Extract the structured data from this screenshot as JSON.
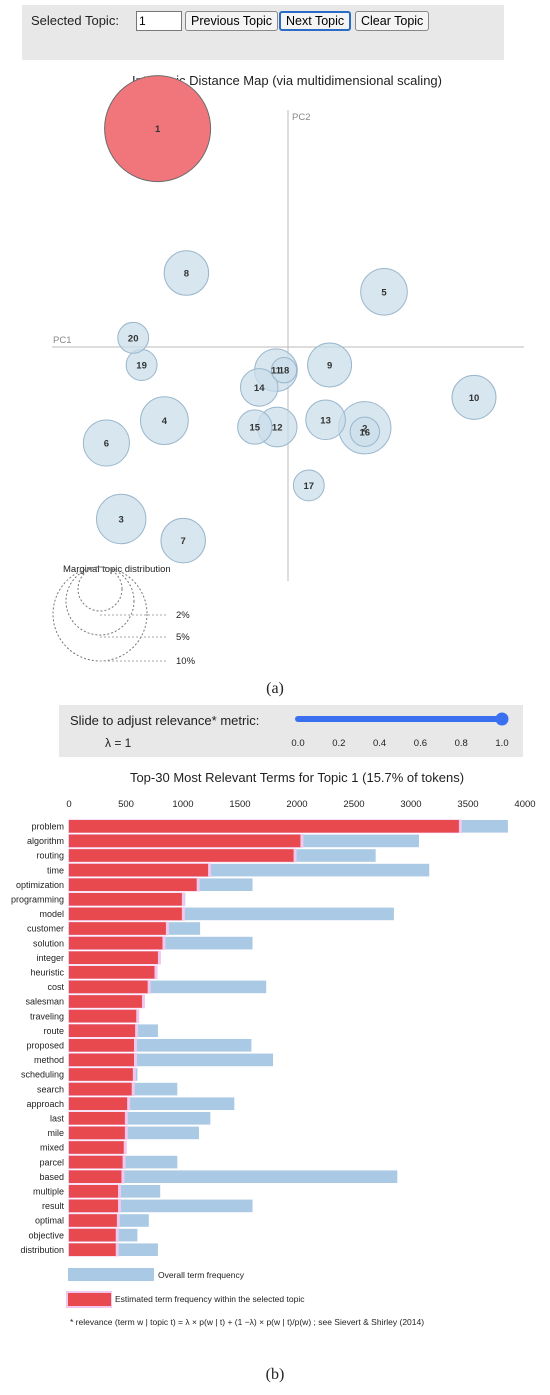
{
  "toolbar": {
    "selected_label": "Selected Topic:",
    "selected_value": "1",
    "prev_label": "Previous Topic",
    "next_label": "Next Topic",
    "clear_label": "Clear Topic"
  },
  "map": {
    "title": "Intertopic Distance Map (via multidimensional scaling)",
    "pc1_label": "PC1",
    "pc2_label": "PC2",
    "selected_color": "#f0767c",
    "topic_color": "#c9ddea",
    "topics": [
      {
        "id": "1",
        "x": -3.26,
        "y": 5.46,
        "size": 1.0
      },
      {
        "id": "2",
        "x": 1.92,
        "y": -2.02,
        "size": 0.243
      },
      {
        "id": "3",
        "x": -4.17,
        "y": -4.3,
        "size": 0.217
      },
      {
        "id": "4",
        "x": -3.09,
        "y": -1.84,
        "size": 0.203
      },
      {
        "id": "5",
        "x": 2.4,
        "y": 1.38,
        "size": 0.193
      },
      {
        "id": "6",
        "x": -4.54,
        "y": -2.4,
        "size": 0.189
      },
      {
        "id": "7",
        "x": -2.62,
        "y": -4.84,
        "size": 0.176
      },
      {
        "id": "8",
        "x": -2.54,
        "y": 1.85,
        "size": 0.176
      },
      {
        "id": "9",
        "x": 1.04,
        "y": -0.45,
        "size": 0.172
      },
      {
        "id": "10",
        "x": 4.65,
        "y": -1.26,
        "size": 0.172
      },
      {
        "id": "11",
        "x": -0.3,
        "y": -0.58,
        "size": 0.162
      },
      {
        "id": "12",
        "x": -0.27,
        "y": -2.0,
        "size": 0.14
      },
      {
        "id": "13",
        "x": 0.94,
        "y": -1.82,
        "size": 0.14
      },
      {
        "id": "14",
        "x": -0.72,
        "y": -1.01,
        "size": 0.125
      },
      {
        "id": "15",
        "x": -0.83,
        "y": -2.0,
        "size": 0.105
      },
      {
        "id": "16",
        "x": 1.92,
        "y": -2.12,
        "size": 0.077
      },
      {
        "id": "17",
        "x": 0.52,
        "y": -3.46,
        "size": 0.085
      },
      {
        "id": "18",
        "x": -0.1,
        "y": -0.58,
        "size": 0.057
      },
      {
        "id": "19",
        "x": -3.66,
        "y": -0.45,
        "size": 0.085
      },
      {
        "id": "20",
        "x": -3.87,
        "y": 0.23,
        "size": 0.085
      }
    ],
    "legend": {
      "title": "Marginal topic distribution",
      "labels": [
        "2%",
        "5%",
        "10%"
      ]
    }
  },
  "caption_a": "(a)",
  "slider": {
    "label": "Slide to adjust relevance* metric:",
    "lambda_text": "λ = 1",
    "value": 1.0,
    "ticks": [
      "0.0",
      "0.2",
      "0.4",
      "0.6",
      "0.8",
      "1.0"
    ],
    "color": "#3a6ff0"
  },
  "chart_data": {
    "type": "bar",
    "title": "Top-30 Most Relevant Terms for Topic 1 (15.7% of tokens)",
    "xlim": [
      0,
      4000
    ],
    "xticks": [
      "0",
      "500",
      "1000",
      "1500",
      "2000",
      "2500",
      "3000",
      "3500",
      "4000"
    ],
    "categories": [
      "problem",
      "algorithm",
      "routing",
      "time",
      "optimization",
      "programming",
      "model",
      "customer",
      "solution",
      "integer",
      "heuristic",
      "cost",
      "salesman",
      "traveling",
      "route",
      "proposed",
      "method",
      "scheduling",
      "search",
      "approach",
      "last",
      "mile",
      "mixed",
      "parcel",
      "based",
      "multiple",
      "result",
      "optimal",
      "objective",
      "distribution"
    ],
    "series": [
      {
        "name": "Overall term frequency",
        "color": "#a9c9e4",
        "values": [
          3850,
          3070,
          2690,
          3160,
          1610,
          1020,
          2850,
          1150,
          1610,
          740,
          770,
          1730,
          640,
          590,
          780,
          1600,
          1790,
          600,
          950,
          1450,
          1240,
          1140,
          470,
          950,
          2880,
          800,
          1610,
          700,
          600,
          780
        ]
      },
      {
        "name": "Estimated term frequency within the selected topic",
        "color": "#e8494f",
        "values": [
          3420,
          2030,
          1970,
          1220,
          1120,
          990,
          990,
          850,
          820,
          780,
          750,
          690,
          640,
          590,
          580,
          570,
          570,
          560,
          550,
          510,
          490,
          490,
          480,
          470,
          460,
          430,
          430,
          420,
          410,
          410
        ]
      }
    ],
    "legend_overall": "Overall term frequency",
    "legend_estimated": "Estimated term frequency within the selected topic",
    "footnote": "* relevance (term w | topic t) = λ × p(w | t) + (1 −λ) × p(w | t)/p(w) ; see Sievert & Shirley (2014)"
  },
  "caption_b": "(b)"
}
